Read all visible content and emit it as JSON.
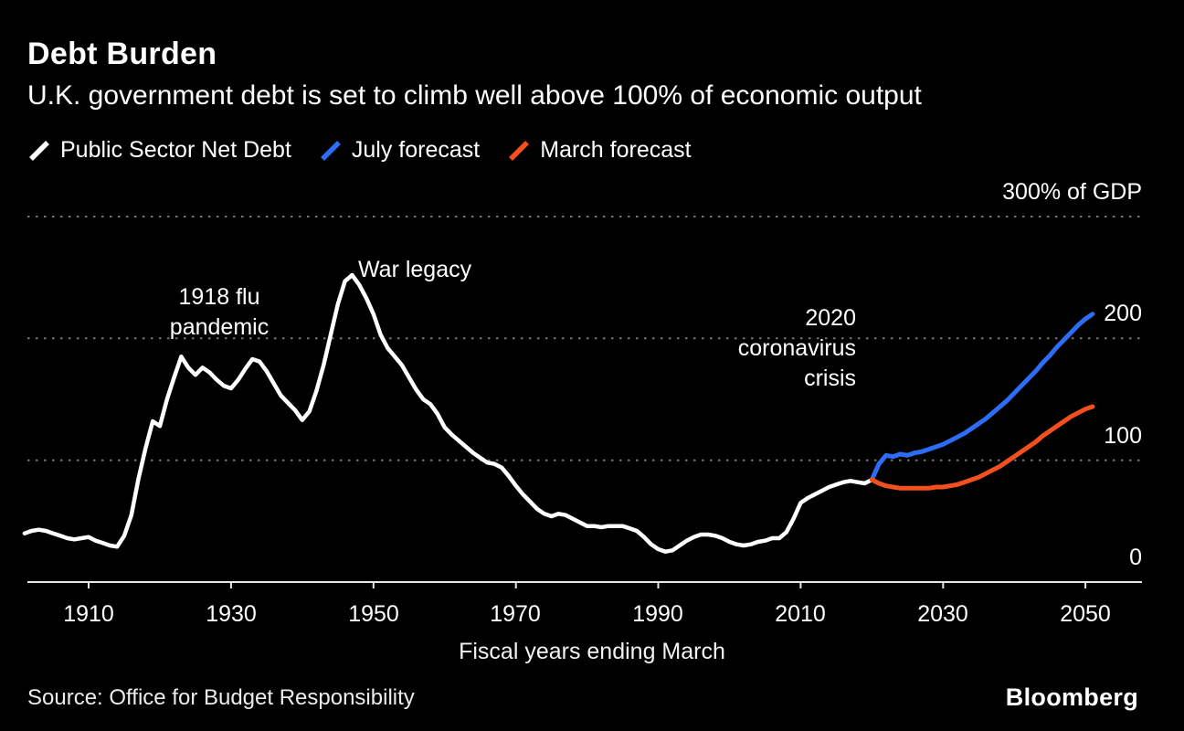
{
  "header": {
    "title": "Debt Burden",
    "subtitle": "U.K. government debt is set to climb well above 100% of economic output"
  },
  "legend": {
    "items": [
      {
        "label": "Public Sector Net Debt",
        "color": "#ffffff"
      },
      {
        "label": "July forecast",
        "color": "#2d6df6"
      },
      {
        "label": "March forecast",
        "color": "#f4501e"
      }
    ]
  },
  "axis": {
    "y_labels": [
      "300% of GDP",
      "200",
      "100",
      "0"
    ],
    "x_ticks": [
      1910,
      1930,
      1950,
      1970,
      1990,
      2010,
      2030,
      2050
    ],
    "x_title": "Fiscal years ending March"
  },
  "annotations": {
    "flu": "1918 flu\npandemic",
    "war": "War legacy",
    "covid": "2020\ncoronavirus\ncrisis"
  },
  "footer": {
    "source": "Source: Office for Budget Responsibility",
    "brand": "Bloomberg"
  },
  "chart_data": {
    "type": "line",
    "title": "Debt Burden",
    "subtitle": "U.K. government debt is set to climb well above 100% of economic output",
    "xlabel": "Fiscal years ending March",
    "ylabel": "% of GDP",
    "xlim": [
      1900,
      2055
    ],
    "ylim": [
      0,
      300
    ],
    "grid": "dotted horizontal",
    "legend_position": "top",
    "gridline_values": [
      300,
      200,
      100
    ],
    "gridline_color": "#757575",
    "axis_color": "#e8e8e8",
    "series": [
      {
        "name": "Public Sector Net Debt",
        "color": "#ffffff",
        "width": 4.5,
        "points": [
          [
            1901,
            40
          ],
          [
            1902,
            42
          ],
          [
            1903,
            43
          ],
          [
            1904,
            42
          ],
          [
            1905,
            40
          ],
          [
            1906,
            38
          ],
          [
            1907,
            36
          ],
          [
            1908,
            35
          ],
          [
            1909,
            36
          ],
          [
            1910,
            37
          ],
          [
            1911,
            34
          ],
          [
            1912,
            32
          ],
          [
            1913,
            30
          ],
          [
            1914,
            29
          ],
          [
            1915,
            38
          ],
          [
            1916,
            55
          ],
          [
            1917,
            85
          ],
          [
            1918,
            110
          ],
          [
            1919,
            132
          ],
          [
            1920,
            128
          ],
          [
            1921,
            150
          ],
          [
            1922,
            168
          ],
          [
            1923,
            185
          ],
          [
            1924,
            176
          ],
          [
            1925,
            170
          ],
          [
            1926,
            176
          ],
          [
            1927,
            172
          ],
          [
            1928,
            166
          ],
          [
            1929,
            161
          ],
          [
            1930,
            159
          ],
          [
            1931,
            166
          ],
          [
            1932,
            175
          ],
          [
            1933,
            183
          ],
          [
            1934,
            181
          ],
          [
            1935,
            173
          ],
          [
            1936,
            163
          ],
          [
            1937,
            153
          ],
          [
            1938,
            147
          ],
          [
            1939,
            141
          ],
          [
            1940,
            133
          ],
          [
            1941,
            140
          ],
          [
            1942,
            157
          ],
          [
            1943,
            178
          ],
          [
            1944,
            203
          ],
          [
            1945,
            228
          ],
          [
            1946,
            247
          ],
          [
            1947,
            252
          ],
          [
            1948,
            244
          ],
          [
            1949,
            233
          ],
          [
            1950,
            220
          ],
          [
            1951,
            203
          ],
          [
            1952,
            192
          ],
          [
            1953,
            185
          ],
          [
            1954,
            178
          ],
          [
            1955,
            168
          ],
          [
            1956,
            158
          ],
          [
            1957,
            150
          ],
          [
            1958,
            146
          ],
          [
            1959,
            138
          ],
          [
            1960,
            127
          ],
          [
            1961,
            121
          ],
          [
            1962,
            116
          ],
          [
            1963,
            111
          ],
          [
            1964,
            106
          ],
          [
            1965,
            102
          ],
          [
            1966,
            98
          ],
          [
            1967,
            97
          ],
          [
            1968,
            94
          ],
          [
            1969,
            87
          ],
          [
            1970,
            79
          ],
          [
            1971,
            72
          ],
          [
            1972,
            66
          ],
          [
            1973,
            60
          ],
          [
            1974,
            56
          ],
          [
            1975,
            54
          ],
          [
            1976,
            56
          ],
          [
            1977,
            55
          ],
          [
            1978,
            52
          ],
          [
            1979,
            49
          ],
          [
            1980,
            46
          ],
          [
            1981,
            46
          ],
          [
            1982,
            45
          ],
          [
            1983,
            46
          ],
          [
            1984,
            46
          ],
          [
            1985,
            46
          ],
          [
            1986,
            44
          ],
          [
            1987,
            42
          ],
          [
            1988,
            37
          ],
          [
            1989,
            31
          ],
          [
            1990,
            27
          ],
          [
            1991,
            25
          ],
          [
            1992,
            26
          ],
          [
            1993,
            30
          ],
          [
            1994,
            34
          ],
          [
            1995,
            37
          ],
          [
            1996,
            39
          ],
          [
            1997,
            39
          ],
          [
            1998,
            38
          ],
          [
            1999,
            36
          ],
          [
            2000,
            33
          ],
          [
            2001,
            31
          ],
          [
            2002,
            30
          ],
          [
            2003,
            31
          ],
          [
            2004,
            33
          ],
          [
            2005,
            34
          ],
          [
            2006,
            36
          ],
          [
            2007,
            36
          ],
          [
            2008,
            41
          ],
          [
            2009,
            52
          ],
          [
            2010,
            65
          ],
          [
            2011,
            69
          ],
          [
            2012,
            72
          ],
          [
            2013,
            75
          ],
          [
            2014,
            78
          ],
          [
            2015,
            80
          ],
          [
            2016,
            82
          ],
          [
            2017,
            83
          ],
          [
            2018,
            82
          ],
          [
            2019,
            81
          ],
          [
            2020,
            84
          ]
        ]
      },
      {
        "name": "July forecast",
        "color": "#2d6df6",
        "width": 5,
        "points": [
          [
            2020,
            84
          ],
          [
            2021,
            97
          ],
          [
            2022,
            104
          ],
          [
            2023,
            103
          ],
          [
            2024,
            105
          ],
          [
            2025,
            104
          ],
          [
            2026,
            106
          ],
          [
            2027,
            107
          ],
          [
            2028,
            109
          ],
          [
            2029,
            111
          ],
          [
            2030,
            113
          ],
          [
            2031,
            116
          ],
          [
            2032,
            119
          ],
          [
            2033,
            122
          ],
          [
            2034,
            126
          ],
          [
            2035,
            130
          ],
          [
            2036,
            134
          ],
          [
            2037,
            139
          ],
          [
            2038,
            144
          ],
          [
            2039,
            149
          ],
          [
            2040,
            155
          ],
          [
            2041,
            161
          ],
          [
            2042,
            167
          ],
          [
            2043,
            173
          ],
          [
            2044,
            180
          ],
          [
            2045,
            186
          ],
          [
            2046,
            193
          ],
          [
            2047,
            199
          ],
          [
            2048,
            205
          ],
          [
            2049,
            211
          ],
          [
            2050,
            216
          ],
          [
            2051,
            220
          ]
        ]
      },
      {
        "name": "March forecast",
        "color": "#f4501e",
        "width": 5,
        "points": [
          [
            2020,
            84
          ],
          [
            2021,
            81
          ],
          [
            2022,
            79
          ],
          [
            2023,
            78
          ],
          [
            2024,
            77
          ],
          [
            2025,
            77
          ],
          [
            2026,
            77
          ],
          [
            2027,
            77
          ],
          [
            2028,
            77
          ],
          [
            2029,
            78
          ],
          [
            2030,
            78
          ],
          [
            2031,
            79
          ],
          [
            2032,
            80
          ],
          [
            2033,
            82
          ],
          [
            2034,
            84
          ],
          [
            2035,
            86
          ],
          [
            2036,
            89
          ],
          [
            2037,
            92
          ],
          [
            2038,
            95
          ],
          [
            2039,
            99
          ],
          [
            2040,
            103
          ],
          [
            2041,
            107
          ],
          [
            2042,
            111
          ],
          [
            2043,
            115
          ],
          [
            2044,
            120
          ],
          [
            2045,
            124
          ],
          [
            2046,
            128
          ],
          [
            2047,
            132
          ],
          [
            2048,
            136
          ],
          [
            2049,
            139
          ],
          [
            2050,
            142
          ],
          [
            2051,
            144
          ]
        ]
      }
    ]
  }
}
